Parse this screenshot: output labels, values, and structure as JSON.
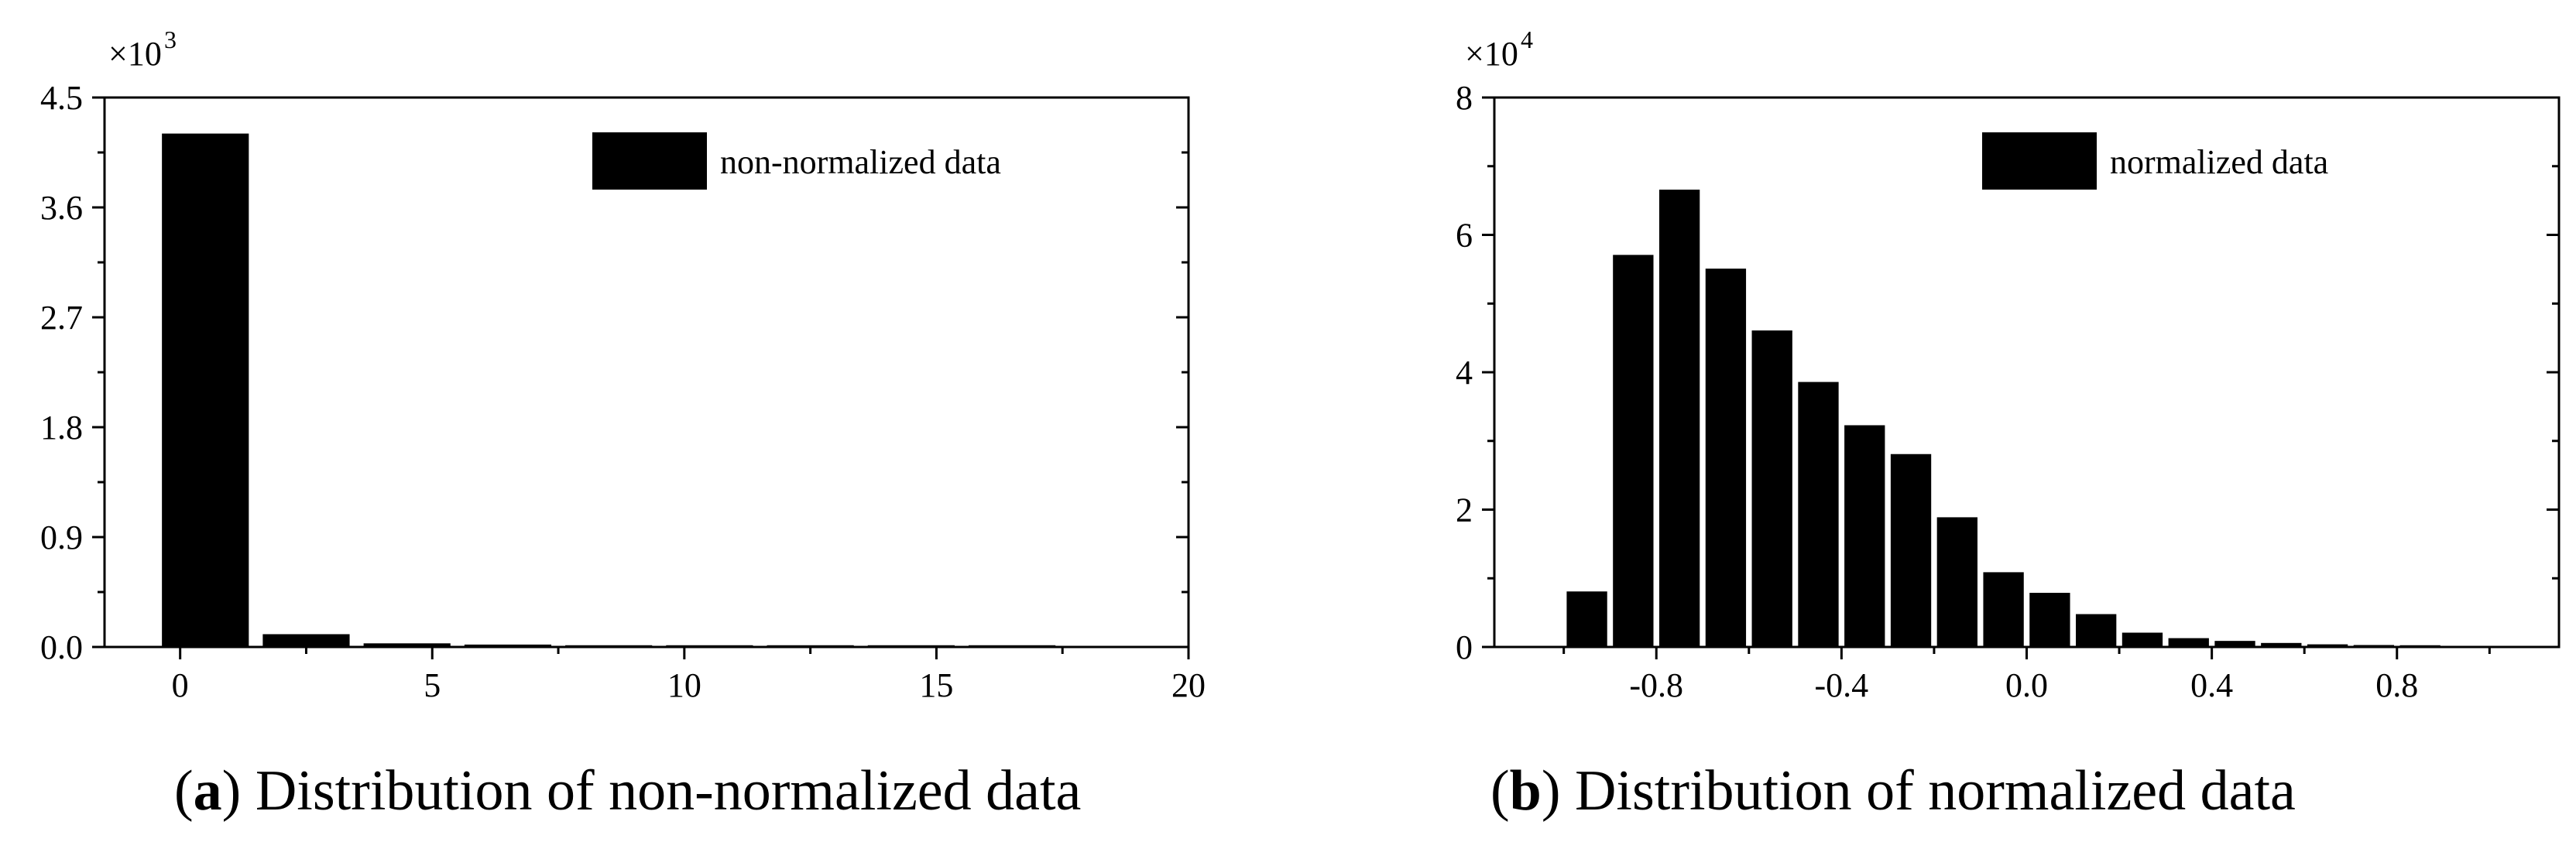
{
  "chart_data": [
    {
      "id": "a",
      "type": "bar",
      "title": "",
      "xlabel": "",
      "ylabel": "",
      "caption_letter": "a",
      "caption_text": "Distribution of non-normalized data",
      "caption_open": "(",
      "caption_close": ")",
      "y_multiplier_base": "×10",
      "y_multiplier_exp": "3",
      "xlim": [
        -1.5,
        20
      ],
      "ylim": [
        0,
        4.5
      ],
      "x_ticks": [
        0,
        5,
        10,
        15,
        20
      ],
      "x_tick_labels": [
        "0",
        "5",
        "10",
        "15",
        "20"
      ],
      "x_minor_ticks": [
        2.5,
        7.5,
        12.5,
        17.5
      ],
      "y_ticks": [
        0,
        0.9,
        1.8,
        2.7,
        3.6,
        4.5
      ],
      "y_tick_labels": [
        "0.0",
        "0.9",
        "1.8",
        "2.7",
        "3.6",
        "4.5"
      ],
      "y_minor_ticks": [
        0.45,
        1.35,
        2.25,
        3.15,
        4.05
      ],
      "bin_width": 1.7,
      "series": [
        {
          "name": "non-normalized data",
          "color": "#000000",
          "x": [
            0.5,
            2.5,
            4.5,
            6.5,
            8.5,
            10.5,
            12.5,
            14.5,
            16.5
          ],
          "values": [
            4.2,
            0.1,
            0.025,
            0.015,
            0.008,
            0.005,
            0.003,
            0.002,
            0.003
          ]
        }
      ],
      "legend": "top-right"
    },
    {
      "id": "b",
      "type": "bar",
      "title": "",
      "xlabel": "",
      "ylabel": "",
      "caption_letter": "b",
      "caption_text": "Distribution of normalized data",
      "caption_open": "(",
      "caption_close": ")",
      "y_multiplier_base": "×10",
      "y_multiplier_exp": "4",
      "xlim": [
        -1.15,
        1.15
      ],
      "ylim": [
        0,
        8
      ],
      "x_ticks": [
        -0.8,
        -0.4,
        0.0,
        0.4,
        0.8
      ],
      "x_tick_labels": [
        "-0.8",
        "-0.4",
        "0.0",
        "0.4",
        "0.8"
      ],
      "x_minor_ticks": [
        -1.0,
        -0.6,
        -0.2,
        0.2,
        0.6,
        1.0
      ],
      "y_ticks": [
        0,
        2,
        4,
        6,
        8
      ],
      "y_tick_labels": [
        "0",
        "2",
        "4",
        "6",
        "8"
      ],
      "y_minor_ticks": [
        1,
        3,
        5,
        7
      ],
      "bin_width": 0.085,
      "series": [
        {
          "name": "normalized data",
          "color": "#000000",
          "x": [
            -0.95,
            -0.85,
            -0.75,
            -0.65,
            -0.55,
            -0.45,
            -0.35,
            -0.25,
            -0.15,
            -0.05,
            0.05,
            0.15,
            0.25,
            0.35,
            0.45,
            0.55,
            0.65,
            0.75,
            0.85
          ],
          "values": [
            0.8,
            5.7,
            6.65,
            5.5,
            4.6,
            3.85,
            3.22,
            2.8,
            1.88,
            1.08,
            0.78,
            0.47,
            0.2,
            0.12,
            0.08,
            0.05,
            0.03,
            0.02,
            0.015
          ]
        }
      ],
      "legend": "top-right"
    }
  ]
}
